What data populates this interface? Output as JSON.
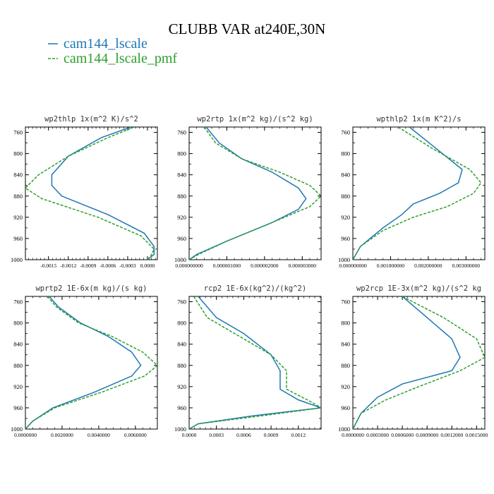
{
  "title": "CLUBB VAR at240E,30N",
  "legend": [
    {
      "name": "cam144_lscale",
      "color": "#1f77b4",
      "dash": "solid"
    },
    {
      "name": "cam144_lscale_pmf",
      "color": "#2ca02c",
      "dash": "dashed"
    }
  ],
  "chart_data": [
    {
      "type": "line",
      "title": "wp2thlp  1x(m^2 K)/s^2",
      "xlim": [
        -0.00185,
        0.00015
      ],
      "ylim": [
        1000,
        750
      ],
      "yticks": [
        760,
        800,
        840,
        880,
        920,
        960,
        1000
      ],
      "xticks": [
        -0.0015,
        -0.0012,
        -0.0009,
        -0.0006,
        -0.0003,
        0.0
      ],
      "xticklabels": [
        "-0.0015",
        "-0.0012",
        "-0.0009",
        "-0.0006",
        "-0.0003",
        "0.0000"
      ],
      "series": [
        {
          "name": "cam144_lscale",
          "x": [
            -0.00025,
            -0.0007,
            -0.0012,
            -0.00145,
            -0.00145,
            -0.0013,
            -0.0006,
            -5e-05,
            0.0001,
            0.0001,
            0.0
          ],
          "y": [
            750,
            770,
            805,
            840,
            860,
            880,
            915,
            950,
            975,
            990,
            1000
          ]
        },
        {
          "name": "cam144_lscale_pmf",
          "x": [
            -0.0002,
            -0.0006,
            -0.0012,
            -0.00165,
            -0.00185,
            -0.0016,
            -0.00075,
            -0.0001,
            0.0001,
            5e-05,
            0.0
          ],
          "y": [
            750,
            770,
            805,
            840,
            865,
            885,
            920,
            955,
            980,
            993,
            1000
          ]
        }
      ]
    },
    {
      "type": "line",
      "title": "wp2rtp  1x(m^2 kg)/(s^2 kg)",
      "xlim": [
        0.0,
        3.5e-06
      ],
      "ylim": [
        1000,
        750
      ],
      "yticks": [
        760,
        800,
        840,
        880,
        920,
        960,
        1000
      ],
      "xticks": [
        0.0,
        1e-06,
        2e-06,
        3e-06
      ],
      "xticklabels": [
        "0.000000000",
        "0.000001000",
        "0.000002000",
        "0.000003000"
      ],
      "series": [
        {
          "name": "cam144_lscale",
          "x": [
            4.5e-07,
            8e-07,
            1.4e-06,
            2.2e-06,
            2.9e-06,
            3.1e-06,
            2.9e-06,
            2.2e-06,
            1e-06,
            2e-07,
            0.0
          ],
          "y": [
            750,
            780,
            810,
            835,
            865,
            885,
            905,
            930,
            965,
            990,
            1000
          ]
        },
        {
          "name": "cam144_lscale_pmf",
          "x": [
            4e-07,
            7e-07,
            1.4e-06,
            2.4e-06,
            3.2e-06,
            3.5e-06,
            3.2e-06,
            2.2e-06,
            1e-06,
            2.5e-07,
            0.0
          ],
          "y": [
            750,
            780,
            810,
            835,
            860,
            880,
            900,
            930,
            965,
            990,
            1000
          ]
        }
      ]
    },
    {
      "type": "line",
      "title": "wpthlp2  1x(m K^2)/s",
      "xlim": [
        0.0,
        0.0035
      ],
      "ylim": [
        1000,
        750
      ],
      "yticks": [
        760,
        800,
        840,
        880,
        920,
        960,
        1000
      ],
      "xticks": [
        0.0,
        0.001,
        0.002,
        0.003
      ],
      "xticklabels": [
        "0.000000000",
        "0.001000000",
        "0.002000000",
        "0.003000000"
      ],
      "series": [
        {
          "name": "cam144_lscale",
          "x": [
            0.0015,
            0.0022,
            0.0029,
            0.0028,
            0.0023,
            0.0016,
            0.0013,
            0.0008,
            0.0002,
            0.0
          ],
          "y": [
            750,
            790,
            830,
            855,
            875,
            895,
            915,
            940,
            975,
            1000
          ]
        },
        {
          "name": "cam144_lscale_pmf",
          "x": [
            0.0012,
            0.0021,
            0.0031,
            0.0034,
            0.0032,
            0.0025,
            0.0016,
            0.0008,
            0.0002,
            0.0
          ],
          "y": [
            750,
            790,
            830,
            855,
            875,
            900,
            920,
            945,
            975,
            1000
          ]
        }
      ]
    },
    {
      "type": "line",
      "title": "wprtp2  1E-6x(m kg)/(s kg)",
      "xlim": [
        0.0,
        0.0072
      ],
      "ylim": [
        1000,
        750
      ],
      "yticks": [
        760,
        800,
        840,
        880,
        920,
        960,
        1000
      ],
      "xticks": [
        0.0,
        0.002,
        0.004,
        0.006
      ],
      "xticklabels": [
        "0.0000000",
        "0.0020000",
        "0.0040000",
        "0.0060000"
      ],
      "series": [
        {
          "name": "cam144_lscale",
          "x": [
            0.0013,
            0.0018,
            0.003,
            0.0045,
            0.0058,
            0.0063,
            0.0058,
            0.0038,
            0.0015,
            0.0004,
            0.0
          ],
          "y": [
            750,
            770,
            800,
            825,
            855,
            880,
            900,
            930,
            960,
            985,
            1000
          ]
        },
        {
          "name": "cam144_lscale_pmf",
          "x": [
            0.0012,
            0.0017,
            0.0029,
            0.0047,
            0.0064,
            0.0072,
            0.0065,
            0.0042,
            0.0016,
            0.0004,
            0.0
          ],
          "y": [
            750,
            770,
            800,
            825,
            855,
            880,
            900,
            930,
            960,
            985,
            1000
          ]
        }
      ]
    },
    {
      "type": "line",
      "title": "rcp2  1E-6x(kg^2)/(kg^2)",
      "xlim": [
        0.0,
        0.00145
      ],
      "ylim": [
        1000,
        750
      ],
      "yticks": [
        760,
        800,
        840,
        880,
        920,
        960,
        1000
      ],
      "xticks": [
        0.0,
        0.0003,
        0.0006,
        0.0009,
        0.0012
      ],
      "xticklabels": [
        "0.0000",
        "0.0003",
        "0.0006",
        "0.0009",
        "0.0012"
      ],
      "series": [
        {
          "name": "cam144_lscale",
          "x": [
            0.0001,
            0.0003,
            0.0006,
            0.0009,
            0.001,
            0.001,
            0.0012,
            0.00145,
            0.0007,
            0.0001,
            0.0
          ],
          "y": [
            750,
            790,
            820,
            860,
            890,
            925,
            945,
            960,
            975,
            990,
            1000
          ]
        },
        {
          "name": "cam144_lscale_pmf",
          "x": [
            5e-05,
            0.0002,
            0.0005,
            0.0009,
            0.00107,
            0.00107,
            0.0013,
            0.00145,
            0.0008,
            0.0001,
            0.0
          ],
          "y": [
            750,
            790,
            820,
            860,
            890,
            925,
            945,
            960,
            975,
            990,
            1000
          ]
        }
      ]
    },
    {
      "type": "line",
      "title": "wp2rcp  1E-3x(m^2 kg)/(s^2 kg",
      "xlim": [
        0.0,
        0.0016
      ],
      "ylim": [
        1000,
        750
      ],
      "yticks": [
        760,
        800,
        840,
        880,
        920,
        960,
        1000
      ],
      "xticks": [
        0.0,
        0.0003,
        0.0006,
        0.0009,
        0.0012,
        0.0015
      ],
      "xticklabels": [
        "0.0000000",
        "0.0003000",
        "0.0006000",
        "0.0009000",
        "0.0012000",
        "0.0015000"
      ],
      "series": [
        {
          "name": "cam144_lscale",
          "x": [
            0.0006,
            0.0009,
            0.0012,
            0.0013,
            0.0012,
            0.0006,
            0.0003,
            0.0001,
            0.0
          ],
          "y": [
            750,
            790,
            830,
            865,
            890,
            915,
            940,
            970,
            1000
          ]
        },
        {
          "name": "cam144_lscale_pmf",
          "x": [
            0.0006,
            0.0011,
            0.0015,
            0.0016,
            0.0013,
            0.0008,
            0.0004,
            0.0001,
            0.0
          ],
          "y": [
            750,
            790,
            830,
            865,
            890,
            920,
            945,
            970,
            1000
          ]
        }
      ]
    }
  ]
}
